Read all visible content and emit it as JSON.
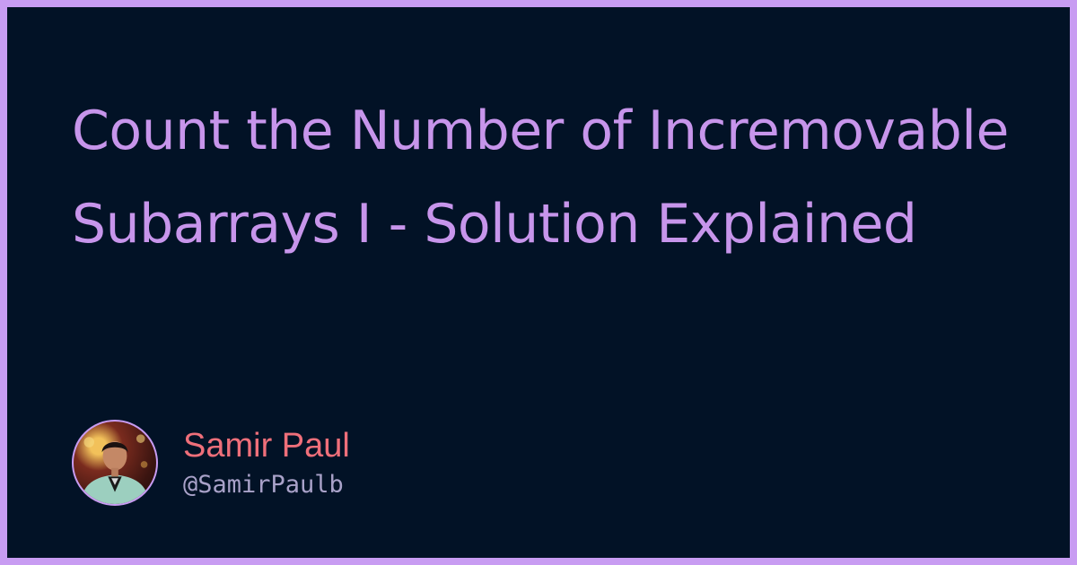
{
  "article": {
    "title": "Count the Number of Incremovable Subarrays I - Solution Explained"
  },
  "author": {
    "name": "Samir Paul",
    "handle": "@SamirPaulb",
    "avatar_icon": "person-avatar-icon"
  },
  "colors": {
    "background": "#021226",
    "border": "#c89cf2",
    "title": "#c795eb",
    "name": "#ef6f7a",
    "handle": "#a9a2c9"
  }
}
